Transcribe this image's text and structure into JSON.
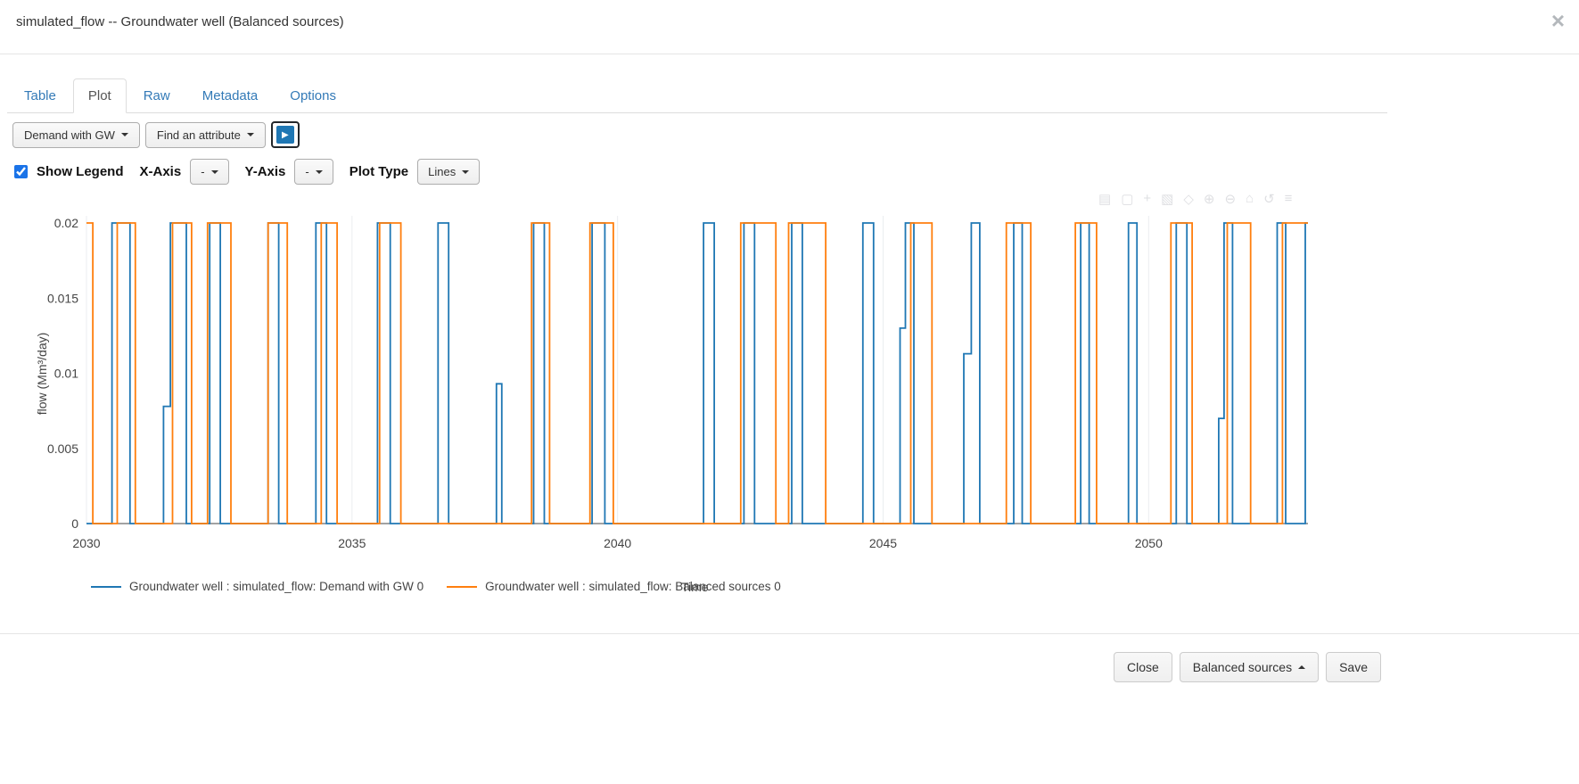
{
  "modal": {
    "title": "simulated_flow -- Groundwater well (Balanced sources)",
    "close_icon": "×"
  },
  "tabs": [
    {
      "label": "Table",
      "active": false
    },
    {
      "label": "Plot",
      "active": true
    },
    {
      "label": "Raw",
      "active": false
    },
    {
      "label": "Metadata",
      "active": false
    },
    {
      "label": "Options",
      "active": false
    }
  ],
  "toolbar": {
    "scenario_dropdown": "Demand with GW",
    "attribute_dropdown": "Find an attribute",
    "play_icon": "▶"
  },
  "plot_controls": {
    "show_legend_label": "Show Legend",
    "show_legend_checked": true,
    "x_axis_label": "X-Axis",
    "x_axis_value": "-",
    "y_axis_label": "Y-Axis",
    "y_axis_value": "-",
    "plot_type_label": "Plot Type",
    "plot_type_value": "Lines"
  },
  "modebar": {
    "icons": [
      {
        "name": "camera",
        "glyph": "▤"
      },
      {
        "name": "zoom",
        "glyph": "▢"
      },
      {
        "name": "pan",
        "glyph": "+"
      },
      {
        "name": "box-select",
        "glyph": "▧"
      },
      {
        "name": "lasso-select",
        "glyph": "◇"
      },
      {
        "name": "zoom-in",
        "glyph": "⊕"
      },
      {
        "name": "zoom-out",
        "glyph": "⊖"
      },
      {
        "name": "autoscale",
        "glyph": "⌂"
      },
      {
        "name": "reset-axes",
        "glyph": "↺"
      },
      {
        "name": "hover-mode",
        "glyph": "≡"
      }
    ]
  },
  "chart_data": {
    "type": "line",
    "title": "",
    "xlabel": "Time",
    "ylabel": "flow (Mm³/day)",
    "xlim": [
      2030,
      2053
    ],
    "ylim": [
      0,
      0.02
    ],
    "xticks": [
      2030,
      2035,
      2040,
      2045,
      2050
    ],
    "yticks": [
      0,
      0.005,
      0.01,
      0.015,
      0.02
    ],
    "grid": "vertical-only",
    "legend_position": "bottom",
    "series": [
      {
        "name": "Groundwater well : simulated_flow: Demand with GW 0",
        "color": "#1f77b4",
        "step_points": [
          [
            2030.0,
            0
          ],
          [
            2030.48,
            0.02
          ],
          [
            2030.82,
            0
          ],
          [
            2031.45,
            0.0078
          ],
          [
            2031.58,
            0.02
          ],
          [
            2031.88,
            0
          ],
          [
            2032.32,
            0.02
          ],
          [
            2032.52,
            0
          ],
          [
            2033.42,
            0.02
          ],
          [
            2033.62,
            0
          ],
          [
            2034.32,
            0.02
          ],
          [
            2034.52,
            0
          ],
          [
            2035.48,
            0.02
          ],
          [
            2035.72,
            0
          ],
          [
            2036.62,
            0.02
          ],
          [
            2036.82,
            0
          ],
          [
            2037.72,
            0.0093
          ],
          [
            2037.82,
            0
          ],
          [
            2038.42,
            0.02
          ],
          [
            2038.62,
            0
          ],
          [
            2039.52,
            0.02
          ],
          [
            2039.76,
            0
          ],
          [
            2041.62,
            0.02
          ],
          [
            2041.82,
            0
          ],
          [
            2042.38,
            0.02
          ],
          [
            2042.58,
            0
          ],
          [
            2043.28,
            0.02
          ],
          [
            2043.48,
            0
          ],
          [
            2044.62,
            0.02
          ],
          [
            2044.82,
            0
          ],
          [
            2045.32,
            0.013
          ],
          [
            2045.42,
            0.02
          ],
          [
            2045.58,
            0
          ],
          [
            2046.52,
            0.0113
          ],
          [
            2046.66,
            0.02
          ],
          [
            2046.82,
            0
          ],
          [
            2047.46,
            0.02
          ],
          [
            2047.62,
            0
          ],
          [
            2048.72,
            0.02
          ],
          [
            2048.88,
            0
          ],
          [
            2049.62,
            0.02
          ],
          [
            2049.78,
            0
          ],
          [
            2050.52,
            0.02
          ],
          [
            2050.72,
            0
          ],
          [
            2051.32,
            0.007
          ],
          [
            2051.42,
            0.02
          ],
          [
            2051.58,
            0
          ],
          [
            2052.42,
            0.02
          ],
          [
            2052.58,
            0
          ],
          [
            2052.95,
            0.02
          ]
        ]
      },
      {
        "name": "Groundwater well : simulated_flow: Balanced sources 0",
        "color": "#ff7f0e",
        "step_points": [
          [
            2030.0,
            0.02
          ],
          [
            2030.12,
            0
          ],
          [
            2030.58,
            0.02
          ],
          [
            2030.92,
            0
          ],
          [
            2031.62,
            0.02
          ],
          [
            2031.98,
            0
          ],
          [
            2032.28,
            0.02
          ],
          [
            2032.72,
            0
          ],
          [
            2033.42,
            0.02
          ],
          [
            2033.78,
            0
          ],
          [
            2034.42,
            0.02
          ],
          [
            2034.72,
            0
          ],
          [
            2035.52,
            0.02
          ],
          [
            2035.92,
            0
          ],
          [
            2038.38,
            0.02
          ],
          [
            2038.72,
            0
          ],
          [
            2039.48,
            0.02
          ],
          [
            2039.92,
            0
          ],
          [
            2042.32,
            0.02
          ],
          [
            2042.98,
            0
          ],
          [
            2043.22,
            0.02
          ],
          [
            2043.92,
            0
          ],
          [
            2045.52,
            0.02
          ],
          [
            2045.92,
            0
          ],
          [
            2047.32,
            0.02
          ],
          [
            2047.78,
            0
          ],
          [
            2048.62,
            0.02
          ],
          [
            2049.02,
            0
          ],
          [
            2050.42,
            0.02
          ],
          [
            2050.82,
            0
          ],
          [
            2051.48,
            0.02
          ],
          [
            2051.92,
            0
          ],
          [
            2052.52,
            0.02
          ]
        ]
      }
    ]
  },
  "footer": {
    "close_label": "Close",
    "scenario_label": "Balanced sources",
    "save_label": "Save"
  }
}
